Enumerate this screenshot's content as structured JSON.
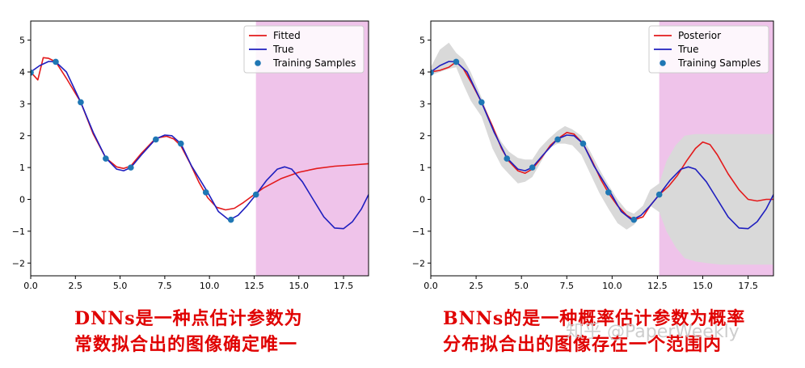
{
  "chart_data": [
    {
      "type": "line",
      "title": "",
      "xlabel": "",
      "ylabel": "",
      "xlim": [
        0,
        18.9
      ],
      "ylim": [
        -2.4,
        5.6
      ],
      "xticks": [
        "0.0",
        "2.5",
        "5.0",
        "7.5",
        "10.0",
        "12.5",
        "15.0",
        "17.5"
      ],
      "yticks": [
        "−2",
        "−1",
        "0",
        "1",
        "2",
        "3",
        "4",
        "5"
      ],
      "shaded_x_range": [
        12.6,
        18.9
      ],
      "shaded_color": "#efc3ea",
      "legend": {
        "position": "top-right",
        "entries": [
          "Fitted",
          "True",
          "Training Samples"
        ]
      },
      "series": [
        {
          "name": "Fitted",
          "color": "#e31a1c",
          "x": [
            0,
            0.4,
            0.7,
            1.0,
            1.4,
            2.0,
            2.8,
            3.5,
            4.2,
            4.8,
            5.2,
            5.6,
            6.2,
            7.0,
            7.6,
            8.0,
            8.4,
            8.9,
            9.4,
            9.9,
            10.4,
            10.9,
            11.4,
            11.9,
            12.5,
            13.0,
            14.0,
            15.0,
            16.0,
            17.0,
            18.0,
            18.9
          ],
          "y": [
            4.0,
            3.75,
            4.45,
            4.43,
            4.32,
            3.8,
            3.05,
            2.05,
            1.3,
            1.02,
            0.97,
            1.05,
            1.45,
            1.92,
            1.98,
            1.9,
            1.68,
            1.15,
            0.55,
            0.05,
            -0.25,
            -0.33,
            -0.28,
            -0.1,
            0.15,
            0.35,
            0.65,
            0.85,
            0.97,
            1.04,
            1.08,
            1.12
          ]
        },
        {
          "name": "True",
          "color": "#1f1fbf",
          "x": [
            0,
            0.5,
            1.0,
            1.4,
            2.0,
            2.8,
            3.5,
            4.2,
            4.8,
            5.2,
            5.6,
            6.2,
            7.0,
            7.5,
            7.9,
            8.4,
            9.0,
            9.9,
            10.5,
            11.1,
            11.6,
            12.1,
            12.6,
            13.2,
            13.8,
            14.2,
            14.6,
            15.2,
            15.8,
            16.4,
            17.0,
            17.5,
            18.0,
            18.5,
            18.9
          ],
          "y": [
            4.0,
            4.2,
            4.33,
            4.32,
            4.0,
            3.05,
            2.1,
            1.3,
            0.95,
            0.9,
            1.0,
            1.4,
            1.9,
            2.02,
            2.0,
            1.75,
            1.05,
            0.22,
            -0.38,
            -0.65,
            -0.5,
            -0.2,
            0.15,
            0.6,
            0.95,
            1.02,
            0.95,
            0.55,
            0.0,
            -0.55,
            -0.9,
            -0.92,
            -0.7,
            -0.3,
            0.15
          ]
        }
      ],
      "points": {
        "name": "Training Samples",
        "color": "#1f77b4",
        "x": [
          0.0,
          1.4,
          2.8,
          4.2,
          5.6,
          7.0,
          8.4,
          9.8,
          11.2,
          12.6
        ],
        "y": [
          3.98,
          4.32,
          3.05,
          1.28,
          1.0,
          1.88,
          1.75,
          0.22,
          -0.64,
          0.15
        ]
      }
    },
    {
      "type": "line",
      "title": "",
      "xlabel": "",
      "ylabel": "",
      "xlim": [
        0,
        18.9
      ],
      "ylim": [
        -2.4,
        5.6
      ],
      "xticks": [
        "0.0",
        "2.5",
        "5.0",
        "7.5",
        "10.0",
        "12.5",
        "15.0",
        "17.5"
      ],
      "yticks": [
        "−2",
        "−1",
        "0",
        "1",
        "2",
        "3",
        "4",
        "5"
      ],
      "shaded_x_range": [
        12.6,
        18.9
      ],
      "shaded_color": "#efc3ea",
      "legend": {
        "position": "top-right",
        "entries": [
          "Posterior",
          "True",
          "Training Samples"
        ]
      },
      "uncertainty_band": {
        "color": "#d9d9d9",
        "x": [
          0,
          0.5,
          1.0,
          1.4,
          1.8,
          2.2,
          2.8,
          3.4,
          3.9,
          4.3,
          4.8,
          5.2,
          5.6,
          6.0,
          6.5,
          7.0,
          7.4,
          7.8,
          8.3,
          8.8,
          9.3,
          9.8,
          10.3,
          10.8,
          11.2,
          11.7,
          12.1,
          12.6,
          13.0,
          13.5,
          14.0,
          14.6,
          15.2,
          16.0,
          17.0,
          18.0,
          18.9
        ],
        "upper": [
          4.15,
          4.7,
          4.92,
          4.6,
          4.4,
          4.0,
          3.2,
          2.3,
          1.8,
          1.5,
          1.3,
          1.25,
          1.25,
          1.6,
          1.9,
          2.15,
          2.3,
          2.2,
          2.0,
          1.5,
          0.95,
          0.45,
          0.0,
          -0.35,
          -0.45,
          -0.2,
          0.3,
          0.5,
          1.2,
          1.7,
          2.0,
          2.05,
          2.05,
          2.05,
          2.05,
          2.05,
          2.05
        ],
        "lower": [
          3.9,
          4.0,
          4.1,
          4.15,
          3.6,
          3.1,
          2.6,
          1.6,
          1.05,
          0.8,
          0.5,
          0.55,
          0.7,
          1.1,
          1.6,
          1.75,
          1.75,
          1.7,
          1.4,
          0.8,
          0.2,
          -0.3,
          -0.75,
          -0.95,
          -0.8,
          -0.45,
          -0.2,
          -0.4,
          -1.0,
          -1.5,
          -1.85,
          -1.95,
          -2.0,
          -2.05,
          -2.05,
          -2.05,
          -2.05
        ]
      },
      "series": [
        {
          "name": "Posterior",
          "color": "#e31a1c",
          "x": [
            0,
            0.5,
            1.0,
            1.4,
            1.8,
            2.3,
            2.8,
            3.4,
            3.9,
            4.3,
            4.8,
            5.2,
            5.6,
            6.1,
            6.6,
            7.0,
            7.5,
            7.9,
            8.4,
            8.9,
            9.4,
            9.8,
            10.3,
            10.8,
            11.2,
            11.7,
            12.1,
            12.6,
            13.1,
            13.6,
            14.1,
            14.6,
            15.0,
            15.4,
            15.8,
            16.4,
            17.0,
            17.5,
            18.0,
            18.5,
            18.9
          ],
          "y": [
            4.0,
            4.05,
            4.15,
            4.32,
            4.1,
            3.6,
            3.05,
            2.3,
            1.6,
            1.2,
            0.9,
            0.82,
            0.95,
            1.3,
            1.7,
            1.9,
            2.1,
            2.05,
            1.75,
            1.2,
            0.6,
            0.2,
            -0.2,
            -0.5,
            -0.64,
            -0.55,
            -0.2,
            0.15,
            0.4,
            0.75,
            1.2,
            1.6,
            1.8,
            1.72,
            1.4,
            0.8,
            0.3,
            0.0,
            -0.05,
            0.0,
            0.0
          ]
        },
        {
          "name": "True",
          "color": "#1f1fbf",
          "x": [
            0,
            0.5,
            1.0,
            1.4,
            2.0,
            2.8,
            3.5,
            4.2,
            4.8,
            5.2,
            5.6,
            6.2,
            7.0,
            7.5,
            7.9,
            8.4,
            9.0,
            9.9,
            10.5,
            11.1,
            11.6,
            12.1,
            12.6,
            13.2,
            13.8,
            14.2,
            14.6,
            15.2,
            15.8,
            16.4,
            17.0,
            17.5,
            18.0,
            18.5,
            18.9
          ],
          "y": [
            4.0,
            4.2,
            4.33,
            4.32,
            4.0,
            3.05,
            2.1,
            1.3,
            0.95,
            0.9,
            1.0,
            1.4,
            1.9,
            2.02,
            2.0,
            1.75,
            1.05,
            0.22,
            -0.38,
            -0.65,
            -0.5,
            -0.2,
            0.15,
            0.6,
            0.95,
            1.02,
            0.95,
            0.55,
            0.0,
            -0.55,
            -0.9,
            -0.92,
            -0.7,
            -0.3,
            0.15
          ]
        }
      ],
      "points": {
        "name": "Training Samples",
        "color": "#1f77b4",
        "x": [
          0.0,
          1.4,
          2.8,
          4.2,
          5.6,
          7.0,
          8.4,
          9.8,
          11.2,
          12.6
        ],
        "y": [
          3.98,
          4.32,
          3.05,
          1.28,
          1.0,
          1.88,
          1.75,
          0.22,
          -0.64,
          0.15
        ]
      }
    }
  ],
  "captions": {
    "left_line1": "DNNs是一种点估计参数为",
    "left_line2": "常数拟合出的图像确定唯一",
    "right_line1": "BNNs的是一种概率估计参数为概率",
    "right_line2": "分布拟合出的图像存在一个范围内"
  },
  "watermark": "知乎 @PaperWeekly"
}
